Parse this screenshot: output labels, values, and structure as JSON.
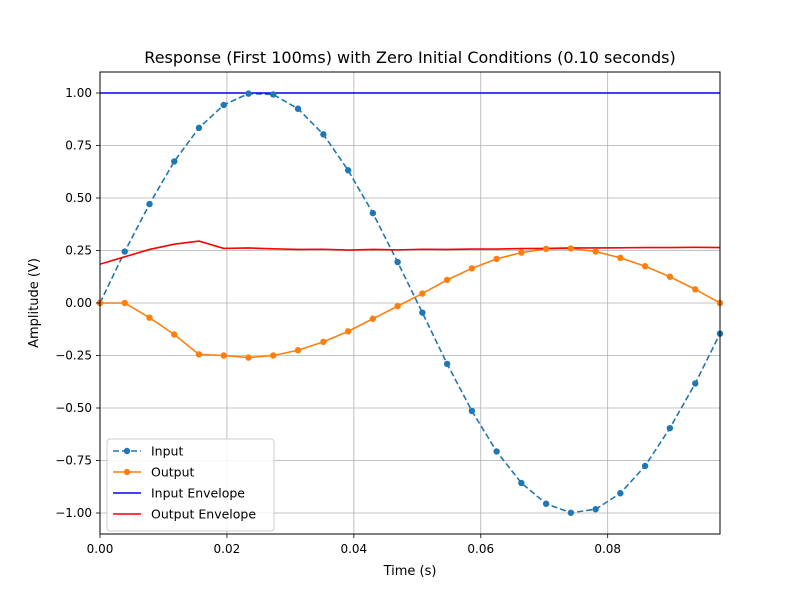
{
  "chart_data": {
    "type": "line",
    "title": "Response (First 100ms) with Zero Initial Conditions (0.10 seconds)",
    "xlabel": "Time (s)",
    "ylabel": "Amplitude (V)",
    "xlim": [
      0.0,
      0.0977
    ],
    "ylim": [
      -1.1,
      1.1
    ],
    "grid": true,
    "legend_position": "lower-left",
    "x_ticks": [
      0.0,
      0.02,
      0.04,
      0.06,
      0.08
    ],
    "x_tick_labels": [
      "0.00",
      "0.02",
      "0.04",
      "0.06",
      "0.08"
    ],
    "y_ticks": [
      -1.0,
      -0.75,
      -0.5,
      -0.25,
      0.0,
      0.25,
      0.5,
      0.75,
      1.0
    ],
    "y_tick_labels": [
      "−1.00",
      "−0.75",
      "−0.50",
      "−0.25",
      "0.00",
      "0.25",
      "0.50",
      "0.75",
      "1.00"
    ],
    "series": [
      {
        "name": "Input",
        "color": "#1f77b4",
        "linestyle": "dashed",
        "marker": "circle",
        "x": [
          0.0,
          0.0039,
          0.0078,
          0.0117,
          0.0156,
          0.0195,
          0.0234,
          0.0273,
          0.0312,
          0.0352,
          0.0391,
          0.043,
          0.0469,
          0.0508,
          0.0547,
          0.0586,
          0.0625,
          0.0664,
          0.0703,
          0.0742,
          0.0781,
          0.082,
          0.0859,
          0.0898,
          0.0938,
          0.0977
        ],
        "y": [
          0.0,
          0.245,
          0.471,
          0.674,
          0.834,
          0.943,
          0.997,
          0.993,
          0.925,
          0.803,
          0.632,
          0.428,
          0.195,
          -0.046,
          -0.29,
          -0.514,
          -0.707,
          -0.857,
          -0.956,
          -0.999,
          -0.982,
          -0.906,
          -0.776,
          -0.596,
          -0.383,
          -0.146
        ]
      },
      {
        "name": "Output",
        "color": "#ff7f0e",
        "linestyle": "solid",
        "marker": "circle",
        "x": [
          0.0,
          0.0039,
          0.0078,
          0.0117,
          0.0156,
          0.0195,
          0.0234,
          0.0273,
          0.0312,
          0.0352,
          0.0391,
          0.043,
          0.0469,
          0.0508,
          0.0547,
          0.0586,
          0.0625,
          0.0664,
          0.0703,
          0.0742,
          0.0781,
          0.082,
          0.0859,
          0.0898,
          0.0938,
          0.0977
        ],
        "y": [
          0.0,
          0.0,
          -0.07,
          -0.15,
          -0.245,
          -0.25,
          -0.26,
          -0.25,
          -0.225,
          -0.185,
          -0.135,
          -0.075,
          -0.015,
          0.045,
          0.11,
          0.165,
          0.21,
          0.24,
          0.258,
          0.26,
          0.245,
          0.215,
          0.175,
          0.125,
          0.065,
          0.0
        ]
      },
      {
        "name": "Input Envelope",
        "color": "#0000ff",
        "linestyle": "solid",
        "marker": "none",
        "x": [
          0.0,
          0.0977
        ],
        "y": [
          1.0,
          1.0
        ]
      },
      {
        "name": "Output Envelope",
        "color": "#ff0000",
        "linestyle": "solid",
        "marker": "none",
        "x": [
          0.0,
          0.0039,
          0.0078,
          0.0117,
          0.0156,
          0.0195,
          0.0234,
          0.0273,
          0.0312,
          0.0352,
          0.0391,
          0.043,
          0.0469,
          0.0508,
          0.0547,
          0.0586,
          0.0625,
          0.0664,
          0.0703,
          0.0742,
          0.0781,
          0.082,
          0.0859,
          0.0898,
          0.0938,
          0.0977
        ],
        "y": [
          0.185,
          0.22,
          0.255,
          0.28,
          0.295,
          0.26,
          0.262,
          0.258,
          0.255,
          0.256,
          0.252,
          0.255,
          0.253,
          0.256,
          0.255,
          0.257,
          0.257,
          0.259,
          0.26,
          0.262,
          0.262,
          0.263,
          0.264,
          0.264,
          0.265,
          0.264
        ]
      }
    ]
  }
}
